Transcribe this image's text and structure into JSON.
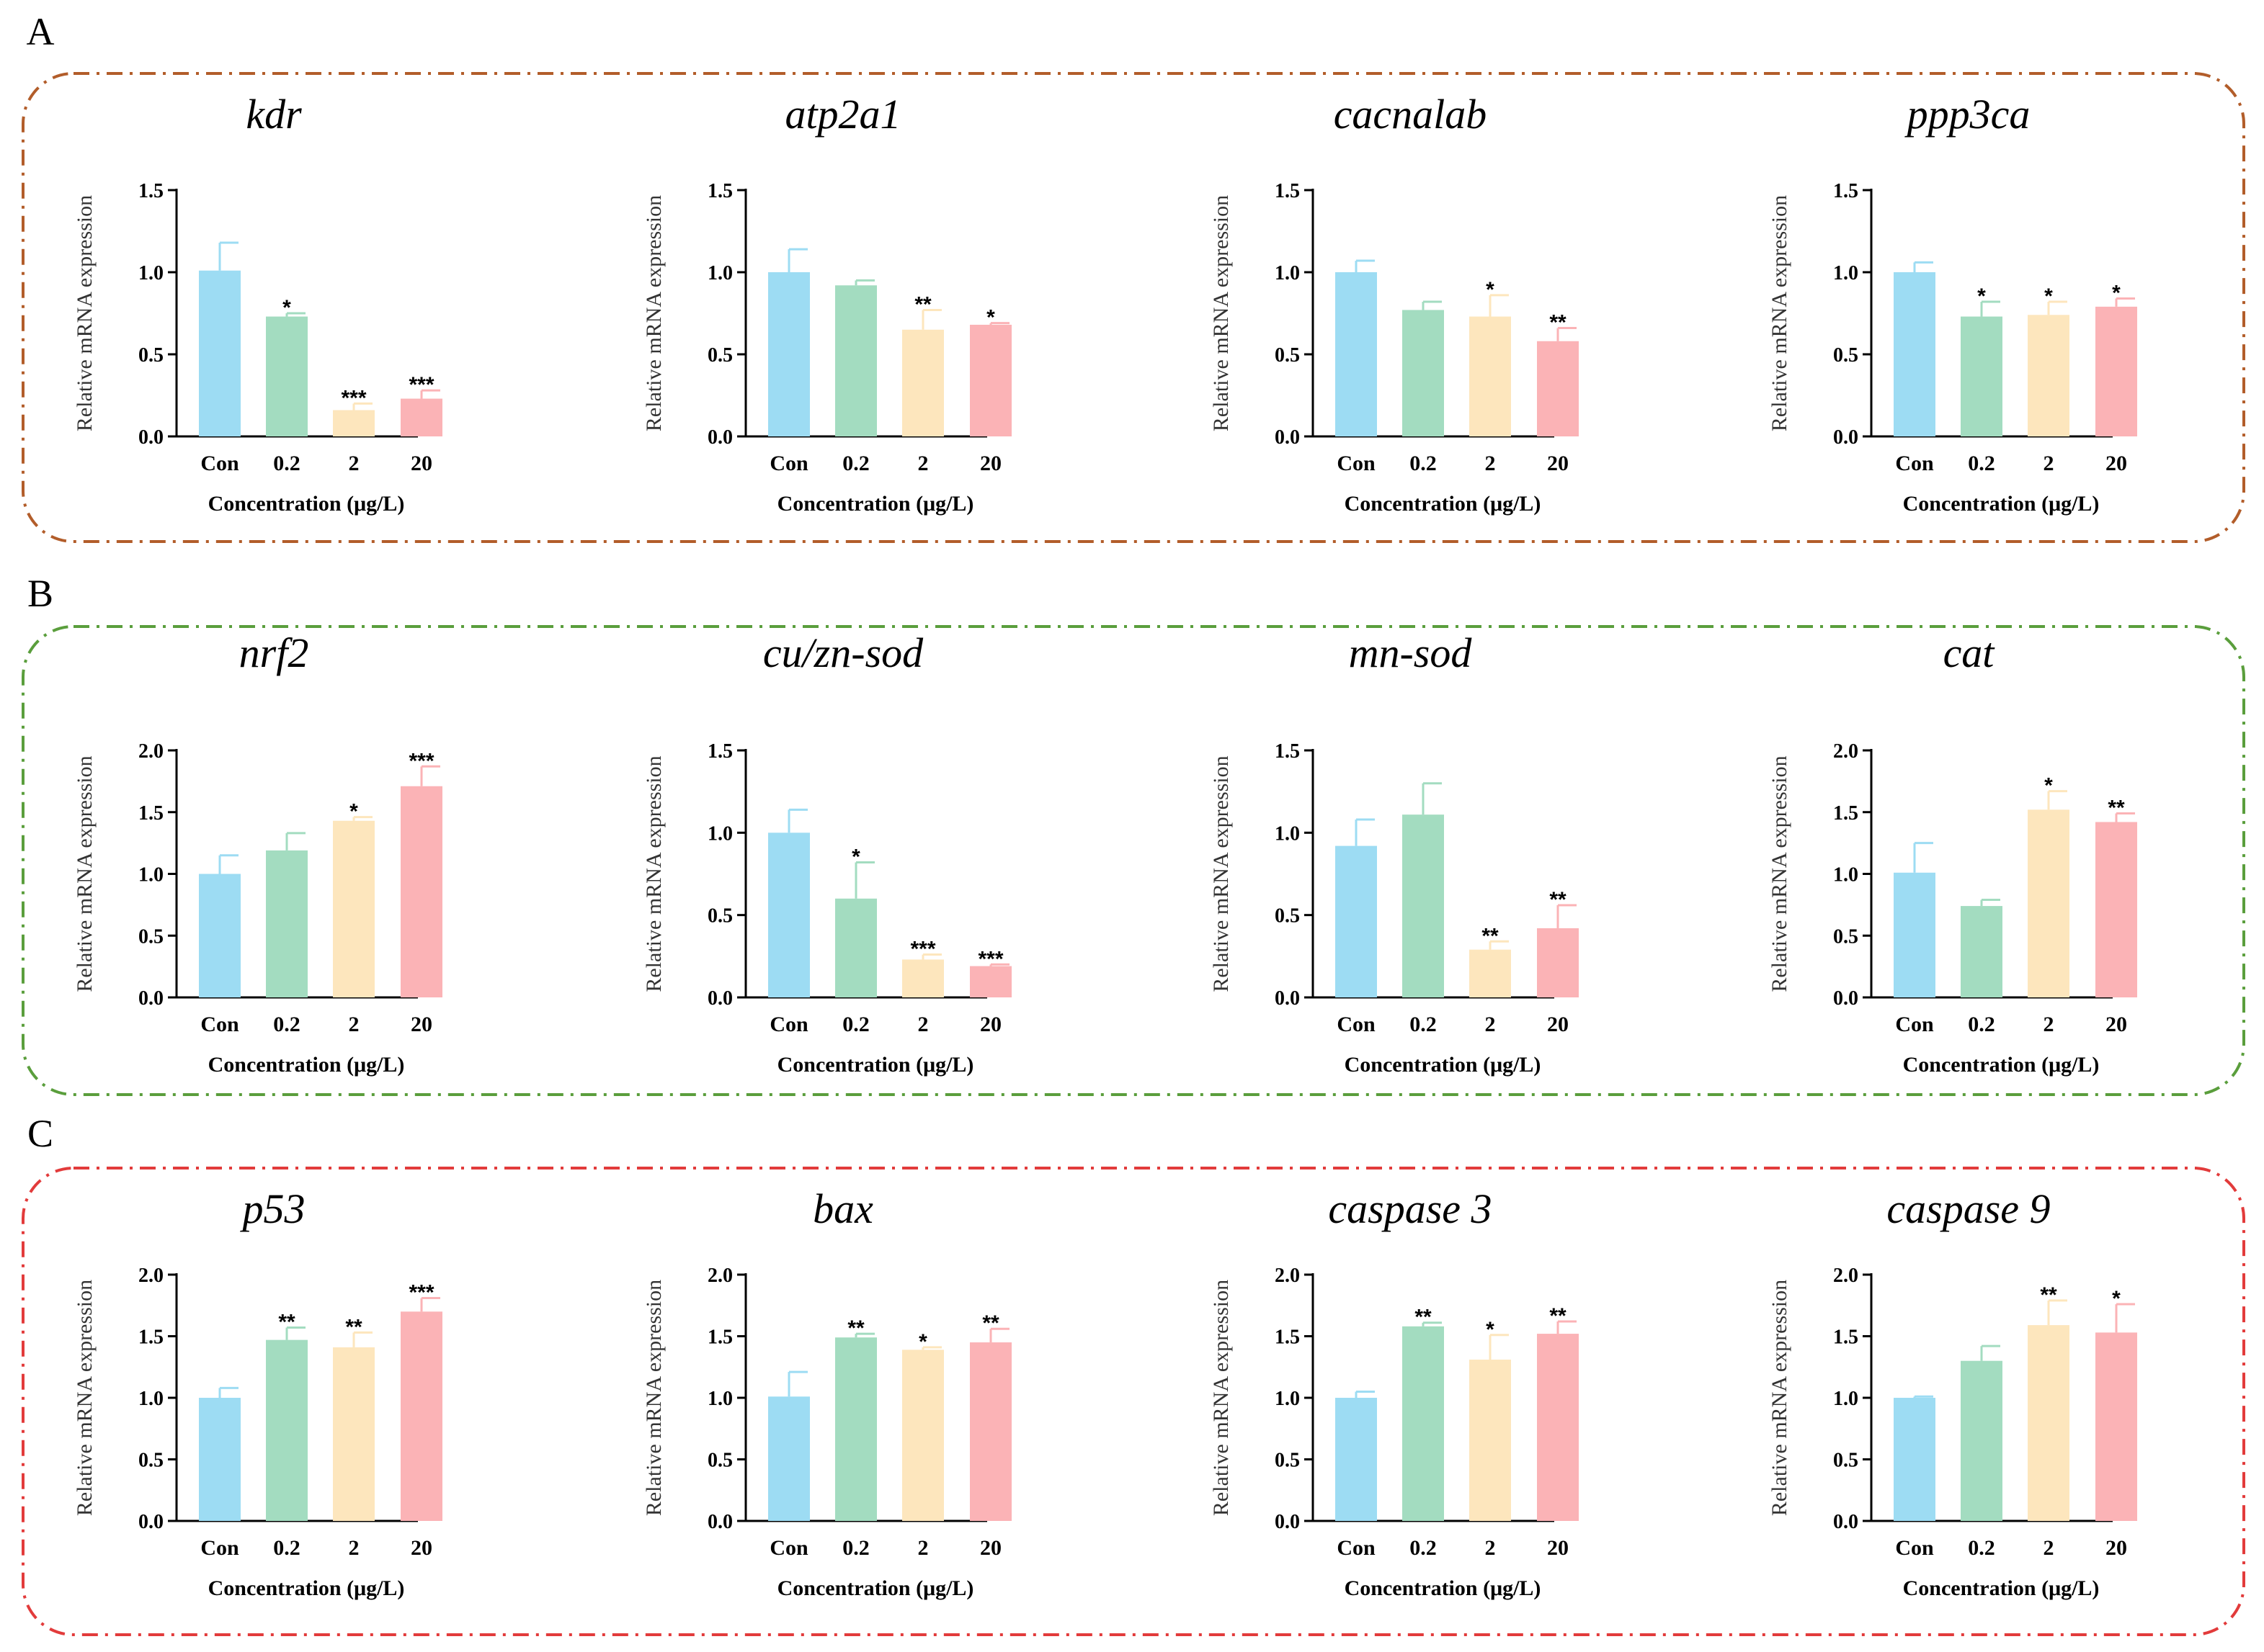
{
  "colors": {
    "bars": [
      "#9ddcf3",
      "#a3dcc0",
      "#fde6bd",
      "#fbb3b6"
    ],
    "errors": [
      "#9ddcf3",
      "#a3dcc0",
      "#fde6bd",
      "#fbb3b6"
    ],
    "panel_borders": [
      "#b25d2a",
      "#5a9e3c",
      "#e23b3b"
    ]
  },
  "panels": [
    {
      "letter": "A"
    },
    {
      "letter": "B"
    },
    {
      "letter": "C"
    }
  ],
  "chart_data": [
    {
      "type": "bar",
      "title": "kdr",
      "ylabel": "Relative mRNA expression",
      "xlabel": "Concentration (μg/L)",
      "categories": [
        "Con",
        "0.2",
        "2",
        "20"
      ],
      "values": [
        1.01,
        0.73,
        0.16,
        0.23
      ],
      "errors": [
        0.17,
        0.02,
        0.04,
        0.05
      ],
      "significance": [
        "",
        "*",
        "***",
        "***"
      ],
      "ylim": [
        0,
        1.5
      ],
      "yticks": [
        "0.0",
        "0.5",
        "1.0",
        "1.5"
      ]
    },
    {
      "type": "bar",
      "title": "atp2a1",
      "ylabel": "Relative mRNA expression",
      "xlabel": "Concentration (μg/L)",
      "categories": [
        "Con",
        "0.2",
        "2",
        "20"
      ],
      "values": [
        1.0,
        0.92,
        0.65,
        0.68
      ],
      "errors": [
        0.14,
        0.03,
        0.12,
        0.01
      ],
      "significance": [
        "",
        "",
        "**",
        "*"
      ],
      "ylim": [
        0,
        1.5
      ],
      "yticks": [
        "0.0",
        "0.5",
        "1.0",
        "1.5"
      ]
    },
    {
      "type": "bar",
      "title": "cacnalab",
      "ylabel": "Relative mRNA expression",
      "xlabel": "Concentration (μg/L)",
      "categories": [
        "Con",
        "0.2",
        "2",
        "20"
      ],
      "values": [
        1.0,
        0.77,
        0.73,
        0.58
      ],
      "errors": [
        0.07,
        0.05,
        0.13,
        0.08
      ],
      "significance": [
        "",
        "",
        "*",
        "**"
      ],
      "ylim": [
        0,
        1.5
      ],
      "yticks": [
        "0.0",
        "0.5",
        "1.0",
        "1.5"
      ]
    },
    {
      "type": "bar",
      "title": "ppp3ca",
      "ylabel": "Relative mRNA expression",
      "xlabel": "Concentration (μg/L)",
      "categories": [
        "Con",
        "0.2",
        "2",
        "20"
      ],
      "values": [
        1.0,
        0.73,
        0.74,
        0.79
      ],
      "errors": [
        0.06,
        0.09,
        0.08,
        0.05
      ],
      "significance": [
        "",
        "*",
        "*",
        "*"
      ],
      "ylim": [
        0,
        1.5
      ],
      "yticks": [
        "0.0",
        "0.5",
        "1.0",
        "1.5"
      ]
    },
    {
      "type": "bar",
      "title": "nrf2",
      "ylabel": "Relative mRNA expression",
      "xlabel": "Concentration (μg/L)",
      "categories": [
        "Con",
        "0.2",
        "2",
        "20"
      ],
      "values": [
        1.0,
        1.19,
        1.43,
        1.71
      ],
      "errors": [
        0.15,
        0.14,
        0.03,
        0.16
      ],
      "significance": [
        "",
        "",
        "*",
        "***"
      ],
      "ylim": [
        0,
        2.0
      ],
      "yticks": [
        "0.0",
        "0.5",
        "1.0",
        "1.5",
        "2.0"
      ]
    },
    {
      "type": "bar",
      "title": "cu/zn-sod",
      "ylabel": "Relative mRNA expression",
      "xlabel": "Concentration (μg/L)",
      "categories": [
        "Con",
        "0.2",
        "2",
        "20"
      ],
      "values": [
        1.0,
        0.6,
        0.23,
        0.19
      ],
      "errors": [
        0.14,
        0.22,
        0.03,
        0.01
      ],
      "significance": [
        "",
        "*",
        "***",
        "***"
      ],
      "ylim": [
        0,
        1.5
      ],
      "yticks": [
        "0.0",
        "0.5",
        "1.0",
        "1.5"
      ]
    },
    {
      "type": "bar",
      "title": "mn-sod",
      "ylabel": "Relative mRNA expression",
      "xlabel": "Concentration (μg/L)",
      "categories": [
        "Con",
        "0.2",
        "2",
        "20"
      ],
      "values": [
        0.92,
        1.11,
        0.29,
        0.42
      ],
      "errors": [
        0.16,
        0.19,
        0.05,
        0.14
      ],
      "significance": [
        "",
        "",
        "**",
        "**"
      ],
      "ylim": [
        0,
        1.5
      ],
      "yticks": [
        "0.0",
        "0.5",
        "1.0",
        "1.5"
      ]
    },
    {
      "type": "bar",
      "title": "cat",
      "ylabel": "Relative mRNA expression",
      "xlabel": "Concentration (μg/L)",
      "categories": [
        "Con",
        "0.2",
        "2",
        "20"
      ],
      "values": [
        1.01,
        0.74,
        1.52,
        1.42
      ],
      "errors": [
        0.24,
        0.05,
        0.15,
        0.07
      ],
      "significance": [
        "",
        "",
        "*",
        "**"
      ],
      "ylim": [
        0,
        2.0
      ],
      "yticks": [
        "0.0",
        "0.5",
        "1.0",
        "1.5",
        "2.0"
      ]
    },
    {
      "type": "bar",
      "title": "p53",
      "ylabel": "Relative mRNA expression",
      "xlabel": "Concentration (μg/L)",
      "categories": [
        "Con",
        "0.2",
        "2",
        "20"
      ],
      "values": [
        1.0,
        1.47,
        1.41,
        1.7
      ],
      "errors": [
        0.08,
        0.1,
        0.12,
        0.11
      ],
      "significance": [
        "",
        "**",
        "**",
        "***"
      ],
      "ylim": [
        0,
        2.0
      ],
      "yticks": [
        "0.0",
        "0.5",
        "1.0",
        "1.5",
        "2.0"
      ]
    },
    {
      "type": "bar",
      "title": "bax",
      "ylabel": "Relative mRNA expression",
      "xlabel": "Concentration (μg/L)",
      "categories": [
        "Con",
        "0.2",
        "2",
        "20"
      ],
      "values": [
        1.01,
        1.49,
        1.39,
        1.45
      ],
      "errors": [
        0.2,
        0.03,
        0.02,
        0.11
      ],
      "significance": [
        "",
        "**",
        "*",
        "**"
      ],
      "ylim": [
        0,
        2.0
      ],
      "yticks": [
        "0.0",
        "0.5",
        "1.0",
        "1.5",
        "2.0"
      ]
    },
    {
      "type": "bar",
      "title": "caspase 3",
      "ylabel": "Relative mRNA expression",
      "xlabel": "Concentration (μg/L)",
      "categories": [
        "Con",
        "0.2",
        "2",
        "20"
      ],
      "values": [
        1.0,
        1.58,
        1.31,
        1.52
      ],
      "errors": [
        0.05,
        0.03,
        0.2,
        0.1
      ],
      "significance": [
        "",
        "**",
        "*",
        "**"
      ],
      "ylim": [
        0,
        2.0
      ],
      "yticks": [
        "0.0",
        "0.5",
        "1.0",
        "1.5",
        "2.0"
      ]
    },
    {
      "type": "bar",
      "title": "caspase 9",
      "ylabel": "Relative mRNA expression",
      "xlabel": "Concentration (μg/L)",
      "categories": [
        "Con",
        "0.2",
        "2",
        "20"
      ],
      "values": [
        1.0,
        1.3,
        1.59,
        1.53
      ],
      "errors": [
        0.01,
        0.12,
        0.2,
        0.23
      ],
      "significance": [
        "",
        "",
        "**",
        "*"
      ],
      "ylim": [
        0,
        2.0
      ],
      "yticks": [
        "0.0",
        "0.5",
        "1.0",
        "1.5",
        "2.0"
      ]
    }
  ]
}
